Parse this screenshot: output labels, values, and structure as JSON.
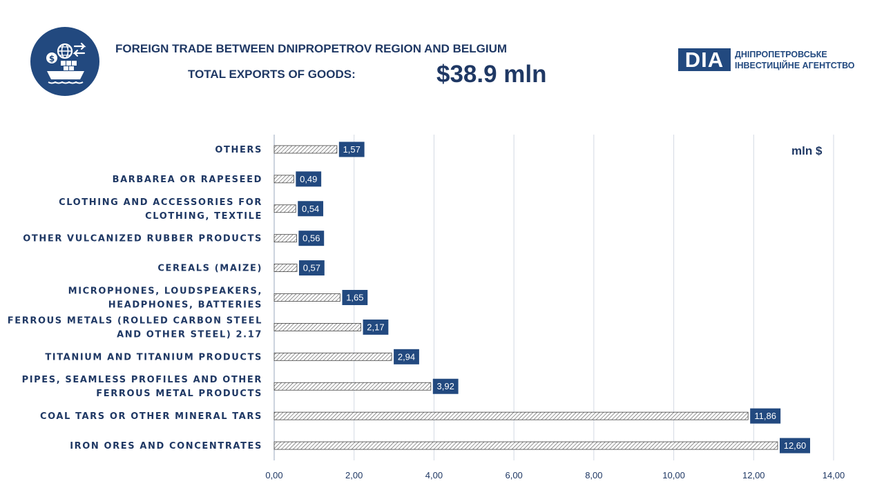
{
  "header": {
    "title": "FOREIGN TRADE BETWEEN DNIPROPETROV REGION AND BELGIUM",
    "subtitle": "TOTAL EXPORTS OF GOODS:",
    "total": "$38.9 mln"
  },
  "brand": {
    "abbr": "DIA",
    "name_line1": "ДНІПРОПЕТРОВСЬКЕ",
    "name_line2": "ІНВЕСТИЦІЙНЕ АГЕНТСТВО",
    "color": "#22497f",
    "trade_icon": "global-trade-ship-icon"
  },
  "chart_data": {
    "type": "bar",
    "orientation": "horizontal",
    "unit_label": "mln $",
    "categories": [
      [
        "OTHERS"
      ],
      [
        "BARBAREA OR RAPESEED"
      ],
      [
        "CLOTHING AND ACCESSORIES FOR",
        "CLOTHING, TEXTILE"
      ],
      [
        "OTHER VULCANIZED RUBBER PRODUCTS"
      ],
      [
        "CEREALS (MAIZE)"
      ],
      [
        "MICROPHONES, LOUDSPEAKERS,",
        "HEADPHONES, BATTERIES"
      ],
      [
        "FERROUS METALS (ROLLED CARBON STEEL",
        "AND OTHER STEEL) 2.17"
      ],
      [
        "TITANIUM AND TITANIUM PRODUCTS"
      ],
      [
        "PIPES, SEAMLESS PROFILES AND OTHER",
        "FERROUS METAL PRODUCTS"
      ],
      [
        "COAL TARS OR OTHER MINERAL TARS"
      ],
      [
        "IRON ORES AND CONCENTRATES"
      ]
    ],
    "values": [
      1.57,
      0.49,
      0.54,
      0.56,
      0.57,
      1.65,
      2.17,
      2.94,
      3.92,
      11.86,
      12.6
    ],
    "value_labels": [
      "1,57",
      "0,49",
      "0,54",
      "0,56",
      "0,57",
      "1,65",
      "2,17",
      "2,94",
      "3,92",
      "11,86",
      "12,60"
    ],
    "xlim": [
      0,
      14
    ],
    "x_ticks": [
      0,
      2,
      4,
      6,
      8,
      10,
      12,
      14
    ],
    "x_tick_labels": [
      "0,00",
      "2,00",
      "4,00",
      "6,00",
      "8,00",
      "10,00",
      "12,00",
      "14,00"
    ],
    "grid": "vertical",
    "bar_fill": "diagonal-hatch",
    "label_color": "#22497f"
  }
}
